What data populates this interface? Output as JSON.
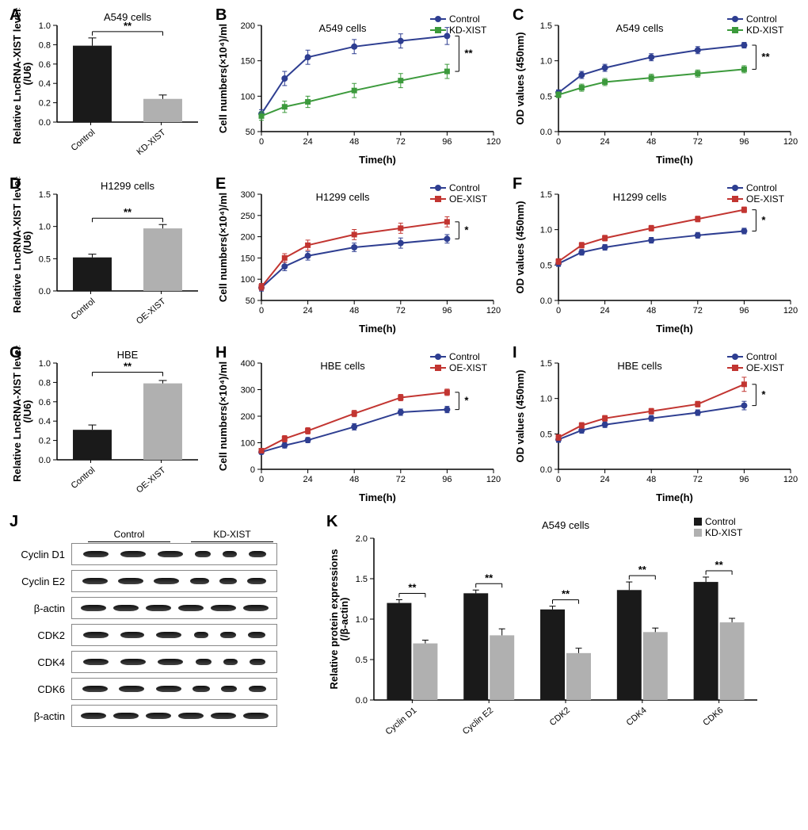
{
  "colors": {
    "black": "#1a1a1a",
    "grey": "#b0b0b0",
    "blue": "#2e3e91",
    "green": "#3c9a3c",
    "red": "#c23531",
    "axis": "#000000"
  },
  "panelA": {
    "label": "A",
    "title": "A549 cells",
    "ylabel": "Relative LncRNA-XIST levels\n(/U6)",
    "ymax": 1.0,
    "ystep": 0.2,
    "cats": [
      "Control",
      "KD-XIST"
    ],
    "vals": [
      0.79,
      0.24
    ],
    "errs": [
      0.08,
      0.04
    ],
    "fills": [
      "#1a1a1a",
      "#b0b0b0"
    ],
    "sig": "**"
  },
  "panelB": {
    "label": "B",
    "title": "A549 cells",
    "ylabel": "Cell numbers(×10⁴)/ml",
    "xlabel": "Time(h)",
    "xmax": 120,
    "xstep": 24,
    "ymin": 50,
    "ymax": 200,
    "ystep": 50,
    "series": [
      {
        "name": "Control",
        "color": "#2e3e91",
        "marker": "circle",
        "x": [
          0,
          12,
          24,
          48,
          72,
          96
        ],
        "y": [
          75,
          125,
          155,
          170,
          178,
          185
        ],
        "err": [
          6,
          10,
          10,
          10,
          10,
          12
        ]
      },
      {
        "name": "KD-XIST",
        "color": "#3c9a3c",
        "marker": "square",
        "x": [
          0,
          12,
          24,
          48,
          72,
          96
        ],
        "y": [
          72,
          85,
          92,
          108,
          122,
          135
        ],
        "err": [
          6,
          8,
          8,
          10,
          10,
          10
        ]
      }
    ],
    "sig": "**"
  },
  "panelC": {
    "label": "C",
    "title": "A549 cells",
    "ylabel": "OD values (450nm)",
    "xlabel": "Time(h)",
    "xmax": 120,
    "xstep": 24,
    "ymin": 0.0,
    "ymax": 1.5,
    "ystep": 0.5,
    "series": [
      {
        "name": "Control",
        "color": "#2e3e91",
        "marker": "circle",
        "x": [
          0,
          12,
          24,
          48,
          72,
          96
        ],
        "y": [
          0.55,
          0.8,
          0.9,
          1.05,
          1.15,
          1.22
        ],
        "err": [
          0.04,
          0.05,
          0.05,
          0.05,
          0.05,
          0.04
        ]
      },
      {
        "name": "KD-XIST",
        "color": "#3c9a3c",
        "marker": "square",
        "x": [
          0,
          12,
          24,
          48,
          72,
          96
        ],
        "y": [
          0.52,
          0.62,
          0.7,
          0.76,
          0.82,
          0.88
        ],
        "err": [
          0.04,
          0.05,
          0.05,
          0.05,
          0.05,
          0.05
        ]
      }
    ],
    "sig": "**"
  },
  "panelD": {
    "label": "D",
    "title": "H1299 cells",
    "ylabel": "Relative LncRNA-XIST levels\n(/U6)",
    "ymax": 1.5,
    "ystep": 0.5,
    "cats": [
      "Control",
      "OE-XIST"
    ],
    "vals": [
      0.52,
      0.97
    ],
    "errs": [
      0.05,
      0.06
    ],
    "fills": [
      "#1a1a1a",
      "#b0b0b0"
    ],
    "sig": "**"
  },
  "panelE": {
    "label": "E",
    "title": "H1299 cells",
    "ylabel": "Cell numbers(×10⁴)/ml",
    "xlabel": "Time(h)",
    "xmax": 120,
    "xstep": 24,
    "ymin": 50,
    "ymax": 300,
    "ystep": 50,
    "series": [
      {
        "name": "Control",
        "color": "#2e3e91",
        "marker": "circle",
        "x": [
          0,
          12,
          24,
          48,
          72,
          96
        ],
        "y": [
          80,
          130,
          155,
          175,
          185,
          195
        ],
        "err": [
          8,
          10,
          10,
          10,
          12,
          10
        ]
      },
      {
        "name": "OE-XIST",
        "color": "#c23531",
        "marker": "square",
        "x": [
          0,
          12,
          24,
          48,
          72,
          96
        ],
        "y": [
          82,
          150,
          180,
          205,
          220,
          235
        ],
        "err": [
          8,
          10,
          12,
          12,
          12,
          12
        ]
      }
    ],
    "sig": "*"
  },
  "panelF": {
    "label": "F",
    "title": "H1299 cells",
    "ylabel": "OD values (450nm)",
    "xlabel": "Time(h)",
    "xmax": 120,
    "xstep": 24,
    "ymin": 0.0,
    "ymax": 1.5,
    "ystep": 0.5,
    "series": [
      {
        "name": "Control",
        "color": "#2e3e91",
        "marker": "circle",
        "x": [
          0,
          12,
          24,
          48,
          72,
          96
        ],
        "y": [
          0.52,
          0.68,
          0.75,
          0.85,
          0.92,
          0.98
        ],
        "err": [
          0.04,
          0.04,
          0.04,
          0.04,
          0.04,
          0.04
        ]
      },
      {
        "name": "OE-XIST",
        "color": "#c23531",
        "marker": "square",
        "x": [
          0,
          12,
          24,
          48,
          72,
          96
        ],
        "y": [
          0.55,
          0.78,
          0.88,
          1.02,
          1.15,
          1.28
        ],
        "err": [
          0.04,
          0.04,
          0.04,
          0.04,
          0.04,
          0.04
        ]
      }
    ],
    "sig": "*"
  },
  "panelG": {
    "label": "G",
    "title": "HBE",
    "ylabel": "Relative LncRNA-XIST levels\n(/U6)",
    "ymax": 1.0,
    "ystep": 0.2,
    "cats": [
      "Control",
      "OE-XIST"
    ],
    "vals": [
      0.31,
      0.79
    ],
    "errs": [
      0.05,
      0.03
    ],
    "fills": [
      "#1a1a1a",
      "#b0b0b0"
    ],
    "sig": "**"
  },
  "panelH": {
    "label": "H",
    "title": "HBE cells",
    "ylabel": "Cell numbers(×10⁴)/ml",
    "xlabel": "Time(h)",
    "xmax": 120,
    "xstep": 24,
    "ymin": 0,
    "ymax": 400,
    "ystep": 100,
    "series": [
      {
        "name": "Control",
        "color": "#2e3e91",
        "marker": "circle",
        "x": [
          0,
          12,
          24,
          48,
          72,
          96
        ],
        "y": [
          65,
          90,
          110,
          160,
          215,
          225
        ],
        "err": [
          8,
          10,
          10,
          12,
          12,
          12
        ]
      },
      {
        "name": "OE-XIST",
        "color": "#c23531",
        "marker": "square",
        "x": [
          0,
          12,
          24,
          48,
          72,
          96
        ],
        "y": [
          70,
          115,
          145,
          210,
          270,
          290
        ],
        "err": [
          8,
          12,
          12,
          12,
          12,
          12
        ]
      }
    ],
    "sig": "*"
  },
  "panelI": {
    "label": "I",
    "title": "HBE cells",
    "ylabel": "OD values (450nm)",
    "xlabel": "Time(h)",
    "xmax": 120,
    "xstep": 24,
    "ymin": 0.0,
    "ymax": 1.5,
    "ystep": 0.5,
    "series": [
      {
        "name": "Control",
        "color": "#2e3e91",
        "marker": "circle",
        "x": [
          0,
          12,
          24,
          48,
          72,
          96
        ],
        "y": [
          0.42,
          0.55,
          0.63,
          0.72,
          0.8,
          0.9
        ],
        "err": [
          0.04,
          0.04,
          0.04,
          0.04,
          0.04,
          0.06
        ]
      },
      {
        "name": "OE-XIST",
        "color": "#c23531",
        "marker": "square",
        "x": [
          0,
          12,
          24,
          48,
          72,
          96
        ],
        "y": [
          0.45,
          0.62,
          0.72,
          0.82,
          0.92,
          1.2
        ],
        "err": [
          0.04,
          0.04,
          0.04,
          0.04,
          0.04,
          0.1
        ]
      }
    ],
    "sig": "*"
  },
  "panelJ": {
    "label": "J",
    "groups": [
      "Control",
      "KD-XIST"
    ],
    "rows": [
      {
        "name": "Cyclin D1",
        "widths": [
          32,
          32,
          32,
          20,
          18,
          22
        ]
      },
      {
        "name": "Cyclin E2",
        "widths": [
          32,
          32,
          32,
          24,
          22,
          24
        ]
      },
      {
        "name": "β-actin",
        "widths": [
          32,
          32,
          32,
          32,
          32,
          32
        ]
      },
      {
        "name": "CDK2",
        "widths": [
          32,
          30,
          32,
          18,
          20,
          22
        ]
      },
      {
        "name": "CDK4",
        "widths": [
          32,
          32,
          32,
          20,
          18,
          20
        ]
      },
      {
        "name": "CDK6",
        "widths": [
          32,
          32,
          32,
          22,
          20,
          22
        ]
      },
      {
        "name": "β-actin",
        "widths": [
          32,
          32,
          32,
          32,
          32,
          32
        ]
      }
    ]
  },
  "panelK": {
    "label": "K",
    "title": "A549 cells",
    "ylabel": "Relative protein expressions\n(/β-actin)",
    "ymax": 2.0,
    "ystep": 0.5,
    "cats": [
      "Cyclin D1",
      "Cyclin E2",
      "CDK2",
      "CDK4",
      "CDK6"
    ],
    "legend": [
      "Control",
      "KD-XIST"
    ],
    "legend_colors": [
      "#1a1a1a",
      "#b0b0b0"
    ],
    "control": [
      1.2,
      1.32,
      1.12,
      1.36,
      1.46
    ],
    "control_err": [
      0.04,
      0.04,
      0.04,
      0.1,
      0.06
    ],
    "kd": [
      0.7,
      0.8,
      0.58,
      0.84,
      0.96
    ],
    "kd_err": [
      0.04,
      0.08,
      0.06,
      0.05,
      0.05
    ],
    "sig": "**"
  }
}
